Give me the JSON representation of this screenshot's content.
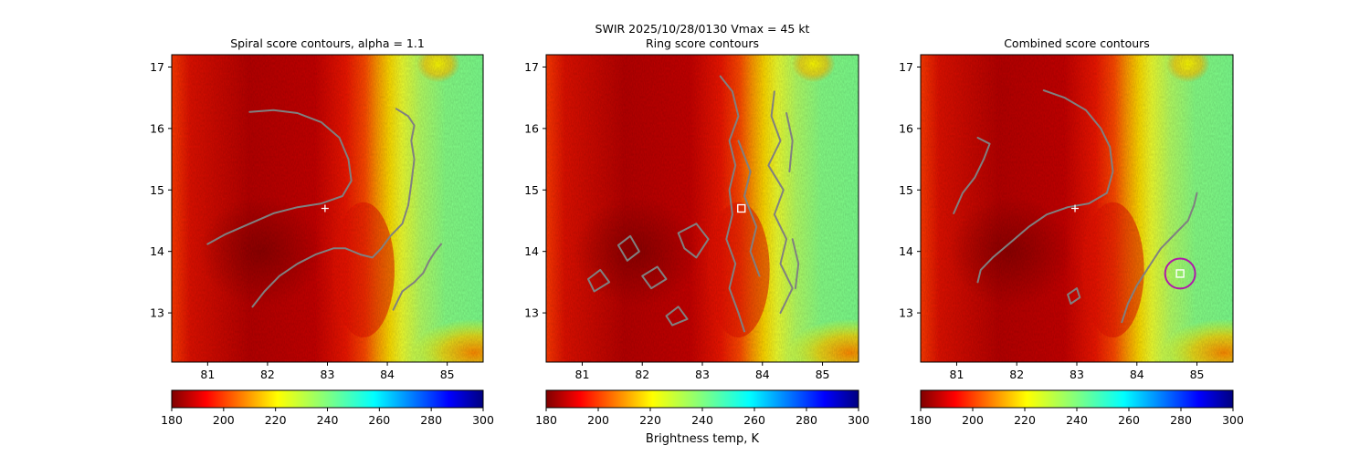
{
  "figure": {
    "suptitle_line1": "SWIR  2025/10/28/0130    Vmax = 45 kt",
    "colorbar_label": "Brightness temp, K"
  },
  "colors": {
    "contour": "#808080",
    "marker": "#ffffff",
    "circle": "#b01aa8"
  },
  "chart_data": [
    {
      "type": "heatmap",
      "title": "Spiral score contours, alpha =  1.1",
      "xlim": [
        80.4,
        85.6
      ],
      "ylim": [
        12.2,
        17.2
      ],
      "x_ticks": [
        81,
        82,
        83,
        84,
        85
      ],
      "y_ticks": [
        13,
        14,
        15,
        16,
        17
      ],
      "colorbar": {
        "min": 180,
        "max": 300,
        "ticks": [
          180,
          200,
          220,
          240,
          260,
          280,
          300
        ],
        "colormap": "jet_r"
      },
      "center_marker": {
        "shape": "plus",
        "lon": 82.96,
        "lat": 14.7
      },
      "contours": [
        [
          [
            81.7,
            16.27
          ],
          [
            82.1,
            16.3
          ],
          [
            82.5,
            16.25
          ],
          [
            82.9,
            16.1
          ],
          [
            83.2,
            15.85
          ],
          [
            83.35,
            15.5
          ],
          [
            83.4,
            15.15
          ],
          [
            83.25,
            14.9
          ],
          [
            82.9,
            14.78
          ],
          [
            82.5,
            14.72
          ],
          [
            82.1,
            14.62
          ],
          [
            81.7,
            14.45
          ],
          [
            81.3,
            14.28
          ],
          [
            81.0,
            14.12
          ]
        ],
        [
          [
            81.75,
            13.1
          ],
          [
            81.95,
            13.35
          ],
          [
            82.2,
            13.6
          ],
          [
            82.5,
            13.8
          ],
          [
            82.8,
            13.95
          ],
          [
            83.1,
            14.05
          ],
          [
            83.3,
            14.05
          ],
          [
            83.55,
            13.95
          ],
          [
            83.75,
            13.9
          ],
          [
            83.9,
            14.05
          ],
          [
            84.05,
            14.25
          ],
          [
            84.25,
            14.45
          ],
          [
            84.35,
            14.75
          ],
          [
            84.4,
            15.1
          ],
          [
            84.45,
            15.5
          ],
          [
            84.4,
            15.8
          ],
          [
            84.45,
            16.05
          ],
          [
            84.35,
            16.2
          ],
          [
            84.15,
            16.32
          ]
        ],
        [
          [
            84.1,
            13.05
          ],
          [
            84.25,
            13.35
          ],
          [
            84.45,
            13.5
          ],
          [
            84.6,
            13.65
          ],
          [
            84.7,
            13.85
          ],
          [
            84.8,
            14.0
          ],
          [
            84.9,
            14.12
          ]
        ]
      ]
    },
    {
      "type": "heatmap",
      "title": "Ring score contours",
      "xlim": [
        80.4,
        85.6
      ],
      "ylim": [
        12.2,
        17.2
      ],
      "x_ticks": [
        81,
        82,
        83,
        84,
        85
      ],
      "y_ticks": [
        13,
        14,
        15,
        16,
        17
      ],
      "colorbar": {
        "min": 180,
        "max": 300,
        "ticks": [
          180,
          200,
          220,
          240,
          260,
          280,
          300
        ],
        "colormap": "jet_r"
      },
      "center_marker": {
        "shape": "square",
        "lon": 83.65,
        "lat": 14.7
      },
      "contours": [
        [
          [
            83.3,
            16.85
          ],
          [
            83.5,
            16.6
          ],
          [
            83.6,
            16.2
          ],
          [
            83.45,
            15.8
          ],
          [
            83.55,
            15.4
          ],
          [
            83.45,
            15.0
          ],
          [
            83.5,
            14.6
          ],
          [
            83.4,
            14.2
          ],
          [
            83.55,
            13.8
          ],
          [
            83.45,
            13.4
          ],
          [
            83.6,
            13.0
          ],
          [
            83.7,
            12.7
          ]
        ],
        [
          [
            84.2,
            16.6
          ],
          [
            84.15,
            16.2
          ],
          [
            84.3,
            15.8
          ],
          [
            84.1,
            15.4
          ],
          [
            84.35,
            15.0
          ],
          [
            84.2,
            14.6
          ],
          [
            84.4,
            14.2
          ],
          [
            84.3,
            13.8
          ],
          [
            84.5,
            13.4
          ],
          [
            84.3,
            13.0
          ]
        ],
        [
          [
            83.6,
            15.8
          ],
          [
            83.8,
            15.3
          ],
          [
            83.7,
            14.9
          ],
          [
            83.9,
            14.4
          ],
          [
            83.8,
            14.0
          ],
          [
            83.95,
            13.6
          ]
        ],
        [
          [
            82.6,
            14.3
          ],
          [
            82.9,
            14.45
          ],
          [
            83.1,
            14.2
          ],
          [
            82.9,
            13.9
          ],
          [
            82.7,
            14.05
          ],
          [
            82.6,
            14.3
          ]
        ],
        [
          [
            81.6,
            14.1
          ],
          [
            81.8,
            14.25
          ],
          [
            81.95,
            14.0
          ],
          [
            81.75,
            13.85
          ],
          [
            81.6,
            14.1
          ]
        ],
        [
          [
            81.1,
            13.55
          ],
          [
            81.3,
            13.7
          ],
          [
            81.45,
            13.5
          ],
          [
            81.2,
            13.35
          ],
          [
            81.1,
            13.55
          ]
        ],
        [
          [
            82.0,
            13.6
          ],
          [
            82.25,
            13.75
          ],
          [
            82.4,
            13.55
          ],
          [
            82.15,
            13.4
          ],
          [
            82.0,
            13.6
          ]
        ],
        [
          [
            82.4,
            12.95
          ],
          [
            82.6,
            13.1
          ],
          [
            82.75,
            12.9
          ],
          [
            82.5,
            12.8
          ],
          [
            82.4,
            12.95
          ]
        ],
        [
          [
            84.4,
            16.25
          ],
          [
            84.5,
            15.8
          ],
          [
            84.45,
            15.3
          ]
        ],
        [
          [
            84.5,
            14.2
          ],
          [
            84.6,
            13.8
          ],
          [
            84.55,
            13.4
          ]
        ]
      ]
    },
    {
      "type": "heatmap",
      "title": "Combined score contours",
      "xlim": [
        80.4,
        85.6
      ],
      "ylim": [
        12.2,
        17.2
      ],
      "x_ticks": [
        81,
        82,
        83,
        84,
        85
      ],
      "y_ticks": [
        13,
        14,
        15,
        16,
        17
      ],
      "colorbar": {
        "min": 180,
        "max": 300,
        "ticks": [
          180,
          200,
          220,
          240,
          260,
          280,
          300
        ],
        "colormap": "jet_r"
      },
      "center_marker": {
        "shape": "plus",
        "lon": 82.97,
        "lat": 14.7
      },
      "best_estimate": {
        "shape": "square",
        "lon": 84.72,
        "lat": 13.64,
        "circle_radius_deg": 0.25
      },
      "contours": [
        [
          [
            82.45,
            16.62
          ],
          [
            82.8,
            16.5
          ],
          [
            83.15,
            16.3
          ],
          [
            83.4,
            16.0
          ],
          [
            83.55,
            15.7
          ],
          [
            83.6,
            15.3
          ],
          [
            83.5,
            14.95
          ],
          [
            83.2,
            14.78
          ],
          [
            82.85,
            14.72
          ],
          [
            82.5,
            14.6
          ],
          [
            82.2,
            14.4
          ],
          [
            81.9,
            14.15
          ],
          [
            81.6,
            13.9
          ],
          [
            81.4,
            13.7
          ],
          [
            81.35,
            13.5
          ]
        ],
        [
          [
            81.35,
            15.85
          ],
          [
            81.55,
            15.75
          ],
          [
            81.45,
            15.5
          ],
          [
            81.3,
            15.2
          ],
          [
            81.1,
            14.95
          ],
          [
            80.95,
            14.62
          ]
        ],
        [
          [
            83.75,
            12.85
          ],
          [
            83.85,
            13.15
          ],
          [
            84.0,
            13.45
          ],
          [
            84.2,
            13.75
          ],
          [
            84.4,
            14.05
          ],
          [
            84.65,
            14.3
          ],
          [
            84.85,
            14.5
          ],
          [
            84.95,
            14.75
          ],
          [
            85.0,
            14.95
          ]
        ],
        [
          [
            82.85,
            13.3
          ],
          [
            83.0,
            13.4
          ],
          [
            83.05,
            13.25
          ],
          [
            82.9,
            13.15
          ],
          [
            82.85,
            13.3
          ]
        ]
      ]
    }
  ]
}
